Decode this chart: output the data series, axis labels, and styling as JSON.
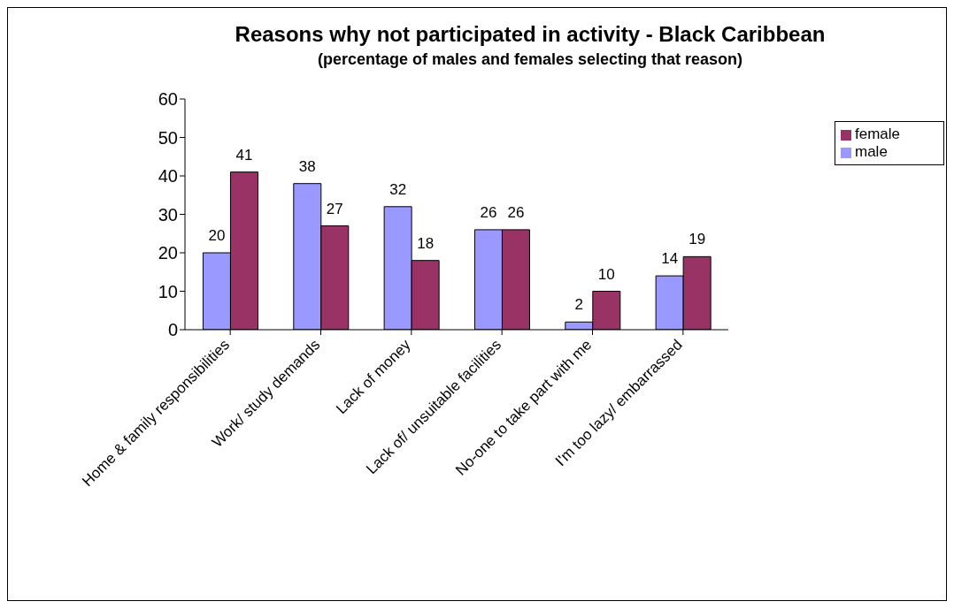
{
  "chart_data": {
    "type": "bar",
    "title": "Reasons why not participated in activity - Black Caribbean",
    "subtitle": "(percentage of males and females selecting that reason)",
    "categories": [
      "Home & family responsibilities",
      "Work/ study demands",
      "Lack of money",
      "Lack of/ unsuitable facilities",
      "No-one to take part with me",
      "I'm too lazy/ embarrassed"
    ],
    "series": [
      {
        "name": "male",
        "color": "#9999ff",
        "values": [
          20,
          38,
          32,
          26,
          2,
          14
        ]
      },
      {
        "name": "female",
        "color": "#993366",
        "values": [
          41,
          27,
          18,
          26,
          10,
          19
        ]
      }
    ],
    "ylim": [
      0,
      60
    ],
    "yticks": [
      0,
      10,
      20,
      30,
      40,
      50,
      60
    ],
    "grid": false,
    "legend": "right",
    "data_labels": true
  }
}
